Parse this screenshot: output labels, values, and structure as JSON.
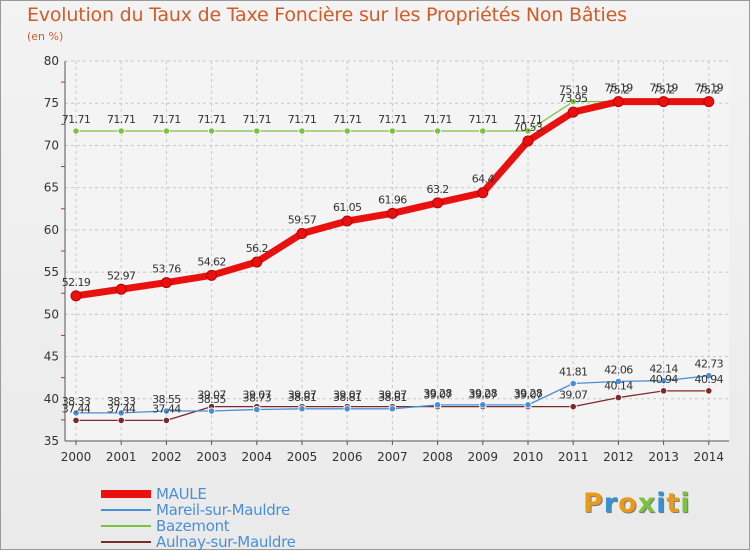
{
  "title": "Evolution du Taux de Taxe Foncière sur les Propriétés Non Bâties",
  "unit_label": "(en %)",
  "logo": {
    "letters": [
      "P",
      "r",
      "o",
      "x",
      "i",
      "t",
      "i"
    ],
    "colors": [
      "#e89a1a",
      "#3a8fd0",
      "#e89a1a",
      "#7cc242",
      "#3a8fd0",
      "#e89a1a",
      "#7cc242"
    ]
  },
  "chart_data": {
    "type": "line",
    "title": "Evolution du Taux de Taxe Foncière sur les Propriétés Non Bâties",
    "ylabel": "(en %)",
    "xlabel": "",
    "ylim": [
      35,
      80
    ],
    "yticks": [
      35,
      40,
      45,
      50,
      55,
      60,
      65,
      70,
      75,
      80
    ],
    "grid": true,
    "legend_position": "bottom-left",
    "x": [
      "2000",
      "2001",
      "2002",
      "2003",
      "2004",
      "2005",
      "2006",
      "2007",
      "2008",
      "2009",
      "2010",
      "2011",
      "2012",
      "2013",
      "2014"
    ],
    "series": [
      {
        "name": "MAULE",
        "color": "#e8110f",
        "values": [
          52.19,
          52.97,
          53.76,
          54.62,
          56.2,
          59.57,
          61.05,
          61.96,
          63.2,
          64.4,
          70.53,
          73.95,
          75.19,
          75.19,
          75.19
        ],
        "labels": [
          "52.19",
          "52.97",
          "53.76",
          "54.62",
          "56.2",
          "59.57",
          "61.05",
          "61.96",
          "63.2",
          "64.4",
          "70.53",
          "73.95",
          "75.19",
          "75.19",
          "75.19"
        ]
      },
      {
        "name": "Mareil-sur-Mauldre",
        "color": "#4a8fd6",
        "values": [
          38.33,
          38.33,
          38.55,
          38.55,
          38.73,
          38.81,
          38.81,
          38.81,
          39.28,
          39.28,
          39.28,
          41.81,
          42.06,
          42.14,
          42.73
        ],
        "labels": [
          "38.33",
          "38.33",
          "38.55",
          "38.55",
          "38.73",
          "38.81",
          "38.81",
          "38.81",
          "39.28",
          "39.28",
          "39.28",
          "41.81",
          "42.06",
          "42.14",
          "42.73"
        ]
      },
      {
        "name": "Bazemont",
        "color": "#7cc242",
        "values": [
          71.71,
          71.71,
          71.71,
          71.71,
          71.71,
          71.71,
          71.71,
          71.71,
          71.71,
          71.71,
          71.71,
          75.19,
          75.2,
          75.2,
          75.2
        ],
        "labels": [
          "71.71",
          "71.71",
          "71.71",
          "71.71",
          "71.71",
          "71.71",
          "71.71",
          "71.71",
          "71.71",
          "71.71",
          "71.71",
          "75.19",
          "75.2",
          "75.2",
          "75.2"
        ]
      },
      {
        "name": "Aulnay-sur-Mauldre",
        "color": "#7b2a2a",
        "values": [
          37.44,
          37.44,
          37.44,
          39.07,
          39.07,
          39.07,
          39.07,
          39.07,
          39.07,
          39.07,
          39.07,
          39.07,
          40.14,
          40.94,
          40.94
        ],
        "labels": [
          "37.44",
          "37.44",
          "37.44",
          "39.07",
          "39.07",
          "39.07",
          "39.07",
          "39.07",
          "39.07",
          "39.07",
          "39.07",
          "39.07",
          "40.14",
          "40.94",
          "40.94"
        ]
      }
    ]
  }
}
